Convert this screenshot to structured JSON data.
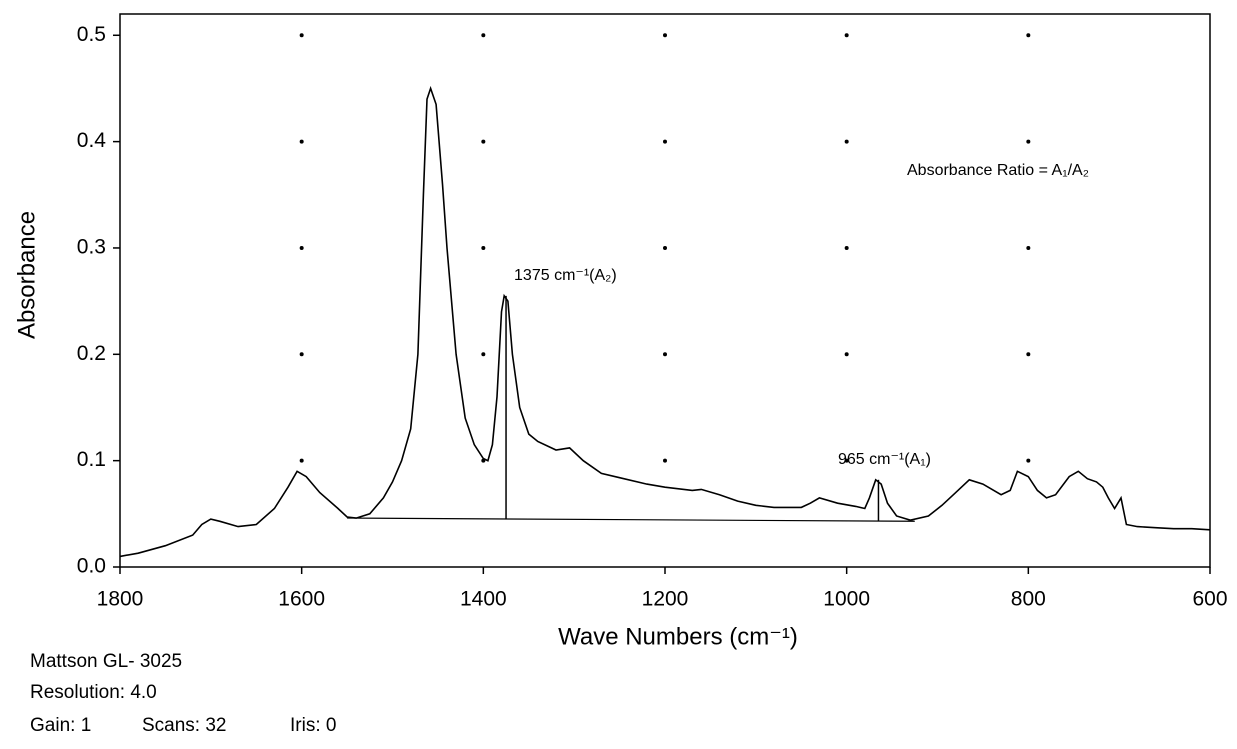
{
  "chart_data": {
    "type": "line",
    "xlabel": "Wave Numbers (cm⁻¹)",
    "ylabel": "Absorbance",
    "x_reversed": true,
    "xlim": [
      1800,
      600
    ],
    "ylim": [
      0,
      0.52
    ],
    "xticks": [
      1800,
      1600,
      1400,
      1200,
      1000,
      800,
      600
    ],
    "yticks": [
      {
        "value": 0,
        "label": "0.0"
      },
      0.1,
      0.2,
      0.3,
      0.4,
      0.5
    ],
    "grid": "dots",
    "color": "#000000",
    "x": [
      1800,
      1780,
      1750,
      1720,
      1710,
      1700,
      1690,
      1670,
      1650,
      1630,
      1615,
      1605,
      1595,
      1580,
      1560,
      1550,
      1540,
      1525,
      1510,
      1500,
      1490,
      1480,
      1472,
      1466,
      1462,
      1458,
      1452,
      1445,
      1440,
      1430,
      1420,
      1410,
      1400,
      1395,
      1390,
      1385,
      1380,
      1377,
      1373,
      1368,
      1360,
      1350,
      1340,
      1320,
      1305,
      1290,
      1270,
      1250,
      1220,
      1200,
      1170,
      1160,
      1140,
      1120,
      1100,
      1080,
      1050,
      1040,
      1030,
      1010,
      990,
      980,
      975,
      968,
      962,
      955,
      945,
      930,
      910,
      895,
      880,
      865,
      850,
      830,
      820,
      812,
      800,
      790,
      780,
      770,
      755,
      745,
      735,
      725,
      718,
      712,
      705,
      698,
      692,
      680,
      660,
      640,
      620,
      600
    ],
    "values": [
      0.01,
      0.013,
      0.02,
      0.03,
      0.04,
      0.045,
      0.043,
      0.038,
      0.04,
      0.055,
      0.075,
      0.09,
      0.085,
      0.07,
      0.055,
      0.047,
      0.046,
      0.05,
      0.065,
      0.08,
      0.1,
      0.13,
      0.2,
      0.35,
      0.44,
      0.45,
      0.435,
      0.36,
      0.3,
      0.2,
      0.14,
      0.115,
      0.102,
      0.1,
      0.115,
      0.16,
      0.24,
      0.255,
      0.25,
      0.2,
      0.15,
      0.125,
      0.118,
      0.11,
      0.112,
      0.1,
      0.088,
      0.084,
      0.078,
      0.075,
      0.072,
      0.073,
      0.068,
      0.062,
      0.058,
      0.056,
      0.056,
      0.06,
      0.065,
      0.06,
      0.057,
      0.055,
      0.065,
      0.082,
      0.078,
      0.06,
      0.048,
      0.044,
      0.048,
      0.058,
      0.07,
      0.082,
      0.078,
      0.068,
      0.072,
      0.09,
      0.085,
      0.072,
      0.065,
      0.068,
      0.085,
      0.09,
      0.083,
      0.08,
      0.075,
      0.065,
      0.055,
      0.065,
      0.04,
      0.038,
      0.037,
      0.036,
      0.036,
      0.035
    ],
    "baseline": {
      "x": [
        1550,
        925
      ],
      "y": [
        0.046,
        0.043
      ]
    },
    "peak_marks": [
      {
        "x": 1375,
        "y": [
          0.0455,
          0.255
        ],
        "label": "1375 cm⁻¹(A₂)"
      },
      {
        "x": 965,
        "y": [
          0.0435,
          0.082
        ],
        "label": "965 cm⁻¹(A₁)"
      }
    ],
    "annotation": "Absorbance Ratio = A₁/A₂",
    "footer": [
      "Mattson GL- 3025",
      "Resolution: 4.0",
      "Gain: 1",
      "Scans: 32",
      "Iris: 0"
    ]
  }
}
